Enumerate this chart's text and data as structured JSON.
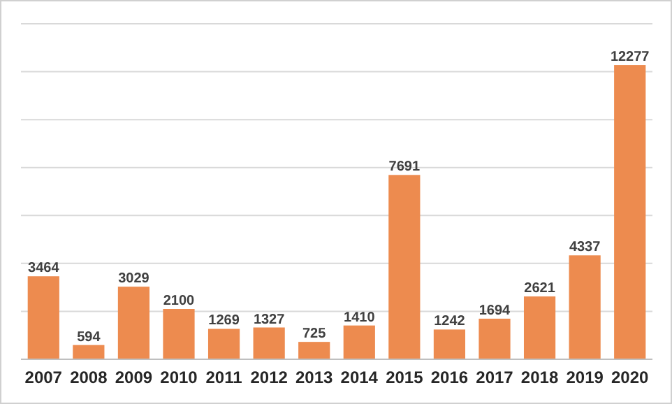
{
  "chart_data": {
    "type": "bar",
    "categories": [
      "2007",
      "2008",
      "2009",
      "2010",
      "2011",
      "2012",
      "2013",
      "2014",
      "2015",
      "2016",
      "2017",
      "2018",
      "2019",
      "2020"
    ],
    "values": [
      3464,
      594,
      3029,
      2100,
      1269,
      1327,
      725,
      1410,
      7691,
      1242,
      1694,
      2621,
      4337,
      12277
    ],
    "color": "#ed8b4f",
    "data_labels": true,
    "ylim": [
      0,
      14000
    ],
    "yticks": [
      0,
      2000,
      4000,
      6000,
      8000,
      10000,
      12000,
      14000
    ],
    "tick_labels": "x",
    "grid": "y"
  }
}
